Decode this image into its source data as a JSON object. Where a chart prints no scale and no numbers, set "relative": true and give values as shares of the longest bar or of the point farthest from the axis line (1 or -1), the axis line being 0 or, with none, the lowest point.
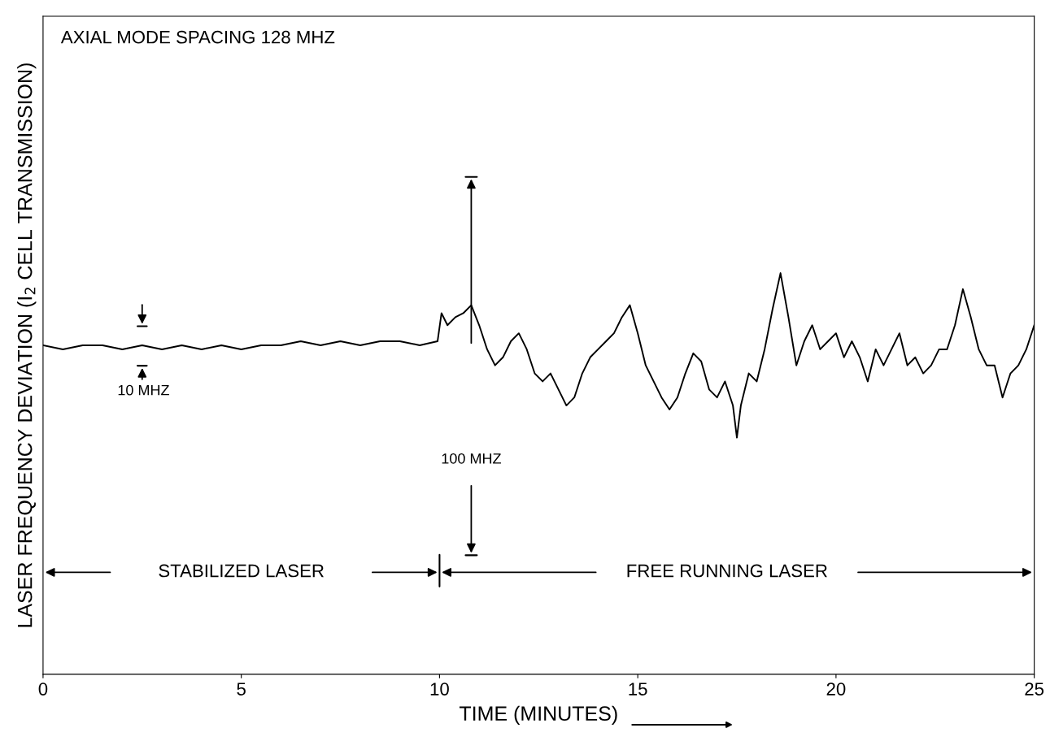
{
  "chart_data": {
    "type": "line",
    "relative": true,
    "xlabel": "TIME (MINUTES)",
    "ylabel": "LASER FREQUENCY DEVIATION (I$_{2}$ CELL TRANSMISSION)",
    "annotations": [
      "AXIAL MODE SPACING 128 MHZ",
      "10 MHZ",
      "100 MHZ",
      "STABILIZED LASER",
      "FREE RUNNING LASER"
    ],
    "xlim": [
      0,
      25
    ],
    "xticks": [
      0,
      5,
      10,
      15,
      20,
      25
    ],
    "grid": false,
    "legend": false,
    "marker": "none",
    "line_style": "solid",
    "series": [
      {
        "color": "#000000",
        "x": [
          0,
          0.5,
          1,
          1.5,
          2,
          2.5,
          3,
          3.5,
          4,
          4.5,
          5,
          5.5,
          6,
          6.5,
          7,
          7.5,
          8,
          8.5,
          9,
          9.5,
          9.95,
          10.05,
          10.2,
          10.4,
          10.6,
          10.8,
          11.0,
          11.2,
          11.4,
          11.6,
          11.8,
          12.0,
          12.2,
          12.4,
          12.6,
          12.8,
          13.0,
          13.2,
          13.4,
          13.6,
          13.8,
          14.0,
          14.2,
          14.4,
          14.6,
          14.8,
          15.0,
          15.2,
          15.4,
          15.6,
          15.8,
          16.0,
          16.2,
          16.4,
          16.6,
          16.8,
          17.0,
          17.2,
          17.4,
          17.5,
          17.6,
          17.8,
          18.0,
          18.2,
          18.4,
          18.6,
          18.8,
          19.0,
          19.2,
          19.4,
          19.6,
          19.8,
          20.0,
          20.2,
          20.4,
          20.6,
          20.8,
          21.0,
          21.2,
          21.4,
          21.6,
          21.8,
          22.0,
          22.2,
          22.4,
          22.6,
          22.8,
          23.0,
          23.2,
          23.4,
          23.6,
          23.8,
          24.0,
          24.2,
          24.4,
          24.6,
          24.8,
          25.0
        ],
        "values": [
          0.82,
          0.81,
          0.82,
          0.82,
          0.81,
          0.82,
          0.81,
          0.82,
          0.81,
          0.82,
          0.81,
          0.82,
          0.82,
          0.83,
          0.82,
          0.83,
          0.82,
          0.83,
          0.83,
          0.82,
          0.83,
          0.9,
          0.87,
          0.89,
          0.9,
          0.92,
          0.87,
          0.81,
          0.77,
          0.79,
          0.83,
          0.85,
          0.81,
          0.75,
          0.73,
          0.75,
          0.71,
          0.67,
          0.69,
          0.75,
          0.79,
          0.81,
          0.83,
          0.85,
          0.89,
          0.92,
          0.85,
          0.77,
          0.73,
          0.69,
          0.66,
          0.69,
          0.75,
          0.8,
          0.78,
          0.71,
          0.69,
          0.73,
          0.67,
          0.59,
          0.67,
          0.75,
          0.73,
          0.81,
          0.91,
          1.0,
          0.89,
          0.77,
          0.83,
          0.87,
          0.81,
          0.83,
          0.85,
          0.79,
          0.83,
          0.79,
          0.73,
          0.81,
          0.77,
          0.81,
          0.85,
          0.77,
          0.79,
          0.75,
          0.77,
          0.81,
          0.81,
          0.87,
          0.96,
          0.89,
          0.81,
          0.77,
          0.77,
          0.69,
          0.75,
          0.77,
          0.81,
          0.87
        ]
      }
    ]
  }
}
